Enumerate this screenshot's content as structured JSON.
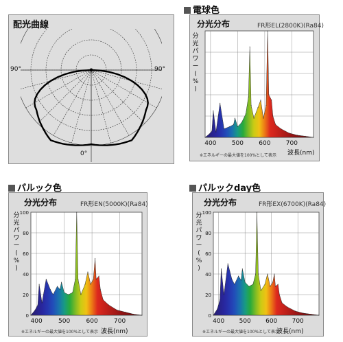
{
  "polar": {
    "title": "配光曲線",
    "label_left": "90°",
    "label_right": "90°",
    "label_bottom": "0°"
  },
  "charts": [
    {
      "key": "denkyu",
      "heading": "電球色",
      "title": "分光分布",
      "model": "FR形EL(2800K)(Ra84)",
      "ylabel": [
        "分",
        "光",
        "パ",
        "ワ",
        "ー",
        "(",
        "%",
        ")"
      ],
      "xlabel": "波長(nm)",
      "note": "※エネルギーの最大値を100%として表示",
      "yticks": [],
      "xticks": [
        "400",
        "500",
        "600",
        "700"
      ]
    },
    {
      "key": "daylight",
      "heading": "パルック色",
      "title": "分光分布",
      "model": "FR形EN(5000K)(Ra84)",
      "ylabel": [
        "分",
        "光",
        "パ",
        "ワ",
        "ー",
        "(",
        "%",
        ")"
      ],
      "xlabel": "波長(nm)",
      "note": "※エネルギーの最大値を100%として表示",
      "yticks": [
        "100",
        "80",
        "60",
        "40",
        "20",
        "0"
      ],
      "xticks": [
        "400",
        "500",
        "600",
        "700"
      ]
    },
    {
      "key": "dayc",
      "heading": "パルックday色",
      "title": "分光分布",
      "model": "FR形EX(6700K)(Ra84)",
      "ylabel": [
        "分",
        "光",
        "パ",
        "ワ",
        "ー",
        "(",
        "%",
        ")"
      ],
      "xlabel": "波長(nm)",
      "note": "※エネルギーの最大値を100%として表示",
      "yticks": [
        "100",
        "80",
        "60",
        "40",
        "20",
        "0"
      ],
      "xticks": [
        "400",
        "500",
        "600",
        "700"
      ]
    }
  ],
  "chart_data": [
    {
      "type": "area",
      "name": "denkyu",
      "xlim": [
        380,
        780
      ],
      "ylim": [
        0,
        100
      ],
      "x": [
        380,
        395,
        405,
        410,
        420,
        435,
        450,
        470,
        485,
        490,
        500,
        515,
        530,
        540,
        545,
        550,
        560,
        575,
        585,
        595,
        605,
        611,
        615,
        625,
        630,
        640,
        660,
        690,
        720,
        750,
        780
      ],
      "values": [
        0,
        3,
        6,
        25,
        5,
        32,
        8,
        10,
        12,
        18,
        10,
        14,
        22,
        38,
        85,
        30,
        18,
        28,
        35,
        18,
        30,
        100,
        40,
        35,
        20,
        12,
        8,
        4,
        2,
        1,
        0
      ]
    },
    {
      "type": "area",
      "name": "daylight",
      "xlim": [
        380,
        780
      ],
      "ylim": [
        0,
        100
      ],
      "x": [
        380,
        395,
        405,
        410,
        420,
        435,
        450,
        460,
        475,
        485,
        490,
        500,
        515,
        530,
        540,
        545,
        550,
        560,
        575,
        585,
        595,
        605,
        611,
        615,
        625,
        630,
        640,
        660,
        690,
        720,
        750,
        780
      ],
      "values": [
        0,
        5,
        10,
        30,
        12,
        35,
        25,
        20,
        28,
        25,
        32,
        22,
        20,
        22,
        35,
        100,
        35,
        20,
        30,
        42,
        30,
        35,
        55,
        35,
        38,
        25,
        15,
        10,
        5,
        3,
        1,
        0
      ]
    },
    {
      "type": "area",
      "name": "dayc",
      "xlim": [
        380,
        780
      ],
      "ylim": [
        0,
        100
      ],
      "x": [
        380,
        395,
        405,
        410,
        420,
        435,
        450,
        460,
        475,
        485,
        490,
        500,
        515,
        530,
        540,
        545,
        550,
        560,
        575,
        585,
        595,
        605,
        611,
        615,
        625,
        630,
        640,
        660,
        690,
        720,
        750,
        780
      ],
      "values": [
        0,
        6,
        15,
        45,
        20,
        50,
        35,
        30,
        38,
        34,
        45,
        32,
        28,
        30,
        40,
        100,
        40,
        24,
        30,
        40,
        28,
        32,
        40,
        28,
        30,
        20,
        12,
        8,
        4,
        2,
        1,
        0
      ]
    }
  ]
}
